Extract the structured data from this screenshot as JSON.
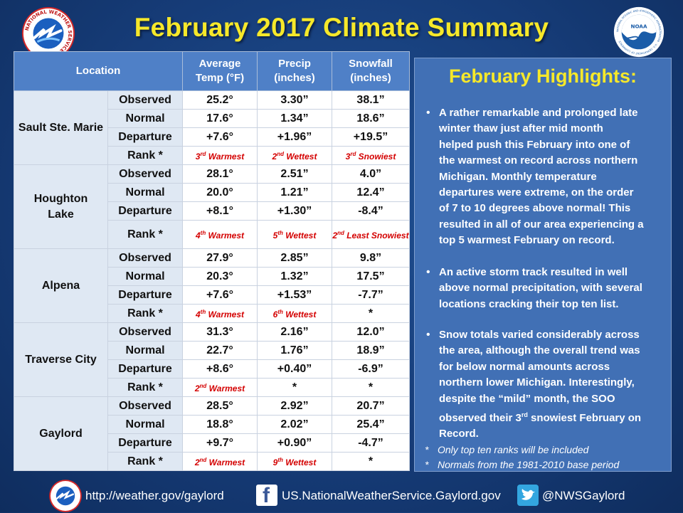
{
  "title": "February 2017 Climate Summary",
  "header": {
    "location": "Location",
    "avg_temp": [
      "Average",
      "Temp (°F)"
    ],
    "precip": [
      "Precip",
      "(inches)"
    ],
    "snowfall": [
      "Snowfall",
      "(inches)"
    ]
  },
  "rows": {
    "observed": "Observed",
    "normal": "Normal",
    "departure": "Departure",
    "rank": "Rank *"
  },
  "locations": [
    {
      "name": [
        "Sault Ste. Marie"
      ],
      "observed": [
        "25.2°",
        "3.30”",
        "38.1”"
      ],
      "normal": [
        "17.6°",
        "1.34”",
        "18.6”"
      ],
      "departure": [
        "+7.6°",
        "+1.96”",
        "+19.5”"
      ],
      "rank": [
        {
          "n": "3",
          "suf": "rd",
          "t": " Warmest"
        },
        {
          "n": "2",
          "suf": "nd",
          "t": " Wettest"
        },
        {
          "n": "3",
          "suf": "rd",
          "t": " Snowiest"
        }
      ]
    },
    {
      "name": [
        "Houghton",
        "Lake"
      ],
      "observed": [
        "28.1°",
        "2.51”",
        "4.0”"
      ],
      "normal": [
        "20.0°",
        "1.21”",
        "12.4”"
      ],
      "departure": [
        "+8.1°",
        "+1.30”",
        "-8.4”"
      ],
      "rank": [
        {
          "n": "4",
          "suf": "th",
          "t": " Warmest"
        },
        {
          "n": "5",
          "suf": "th",
          "t": " Wettest"
        },
        {
          "n": "2",
          "suf": "nd",
          "t": " Least Snowiest"
        }
      ]
    },
    {
      "name": [
        "Alpena"
      ],
      "observed": [
        "27.9°",
        "2.85”",
        "9.8”"
      ],
      "normal": [
        "20.3°",
        "1.32”",
        "17.5”"
      ],
      "departure": [
        "+7.6°",
        "+1.53”",
        "-7.7”"
      ],
      "rank": [
        {
          "n": "4",
          "suf": "th",
          "t": " Warmest"
        },
        {
          "n": "6",
          "suf": "th",
          "t": " Wettest"
        },
        {
          "star": "*"
        }
      ]
    },
    {
      "name": [
        "Traverse City"
      ],
      "observed": [
        "31.3°",
        "2.16”",
        "12.0”"
      ],
      "normal": [
        "22.7°",
        "1.76”",
        "18.9”"
      ],
      "departure": [
        "+8.6°",
        "+0.40”",
        "-6.9”"
      ],
      "rank": [
        {
          "n": "2",
          "suf": "nd",
          "t": " Warmest"
        },
        {
          "star": "*"
        },
        {
          "star": "*"
        }
      ]
    },
    {
      "name": [
        "Gaylord"
      ],
      "observed": [
        "28.5°",
        "2.92”",
        "20.7”"
      ],
      "normal": [
        "18.8°",
        "2.02”",
        "25.4”"
      ],
      "departure": [
        "+9.7°",
        "+0.90”",
        "-4.7”"
      ],
      "rank": [
        {
          "n": "2",
          "suf": "nd",
          "t": " Warmest"
        },
        {
          "n": "9",
          "suf": "th",
          "t": " Wettest"
        },
        {
          "star": "*"
        }
      ]
    }
  ],
  "highlights": {
    "title": "February Highlights:",
    "items": [
      {
        "lines": [
          "A rather remarkable and prolonged late",
          "winter thaw just after mid month",
          "helped push this February into one of",
          "the warmest on record across northern",
          "Michigan.  Monthly temperature",
          "departures were extreme, on the order",
          "of 7 to 10 degrees above normal!  This",
          "resulted in all of our area experiencing a",
          "top 5 warmest February on record."
        ]
      },
      {
        "lines": [
          "An active storm track resulted in well",
          "above normal precipitation, with several",
          "locations cracking their top ten list."
        ]
      },
      {
        "lines": [
          "Snow totals varied considerably across",
          "the area, although the overall trend was",
          "for below normal amounts across",
          "northern lower Michigan.  Interestingly,",
          "despite the “mild” month, the SOO",
          "observed their 3|rd| snowiest February on",
          "Record."
        ]
      }
    ],
    "notes": [
      "Only top ten ranks will be included",
      "Normals from the 1981-2010 base period"
    ]
  },
  "footer": {
    "url": "http://weather.gov/gaylord",
    "facebook": "US.NationalWeatherService.Gaylord.gov",
    "twitter": "@NWSGaylord"
  },
  "logos": {
    "nws_text": "NATIONAL WEATHER SERVICE",
    "noaa_text": "NOAA",
    "noaa_ring": "NATIONAL OCEANIC AND ATMOSPHERIC ADMINISTRATION · U.S. DEPARTMENT OF COMMERCE"
  },
  "colors": {
    "title": "#f6e82a",
    "header_bg": "#4f80c7",
    "rank_red": "#d40000",
    "panel_bg": "#4170b5"
  }
}
